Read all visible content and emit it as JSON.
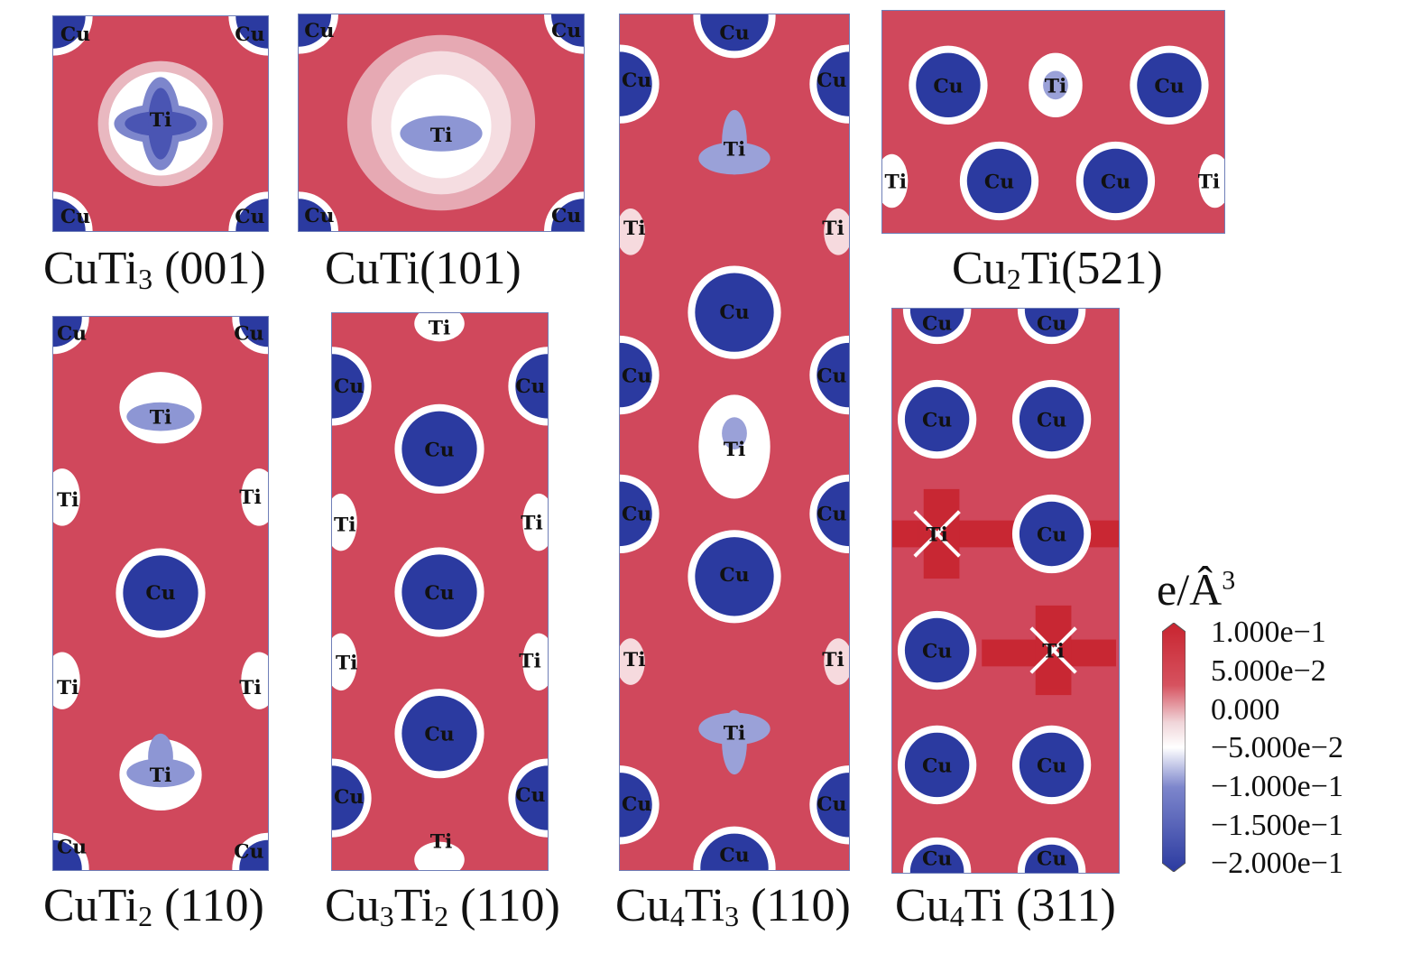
{
  "figure": {
    "panels": [
      {
        "id": "p1",
        "formula": "CuTi",
        "sub1": "",
        "mid": "",
        "sub2": "3",
        "plane": "(001)"
      },
      {
        "id": "p2",
        "formula": "CuTi",
        "sub1": "",
        "mid": "",
        "sub2": "",
        "plane": "(101)"
      },
      {
        "id": "p3",
        "formula": "Cu",
        "sub1": "2",
        "mid": "Ti",
        "sub2": "",
        "plane": "(521)"
      },
      {
        "id": "p4",
        "formula": "CuTi",
        "sub1": "",
        "mid": "",
        "sub2": "2",
        "plane": "(110)"
      },
      {
        "id": "p5",
        "formula": "Cu",
        "sub1": "3",
        "mid": "Ti",
        "sub2": "2",
        "plane": "(110)"
      },
      {
        "id": "p6",
        "formula": "Cu",
        "sub1": "4",
        "mid": "Ti",
        "sub2": "3",
        "plane": "(110)"
      },
      {
        "id": "p7",
        "formula": "Cu",
        "sub1": "4",
        "mid": "Ti",
        "sub2": "",
        "plane": "(311)"
      }
    ],
    "atom_labels": {
      "cu": "Cu",
      "ti": "Ti"
    },
    "colorbar": {
      "title_base": "e/Â",
      "title_exp": "3",
      "ticks": [
        "1.000e−1",
        "5.000e−2",
        "0.000",
        "−5.000e−2",
        "−1.000e−1",
        "−1.500e−1",
        "−2.000e−1"
      ],
      "colors": {
        "max": "#c8242f",
        "zero": "#f3dfe2",
        "min": "#2b3aa0",
        "mid_red": "#d0485c",
        "white": "#ffffff",
        "mid_blue": "#7d86cc"
      }
    }
  }
}
